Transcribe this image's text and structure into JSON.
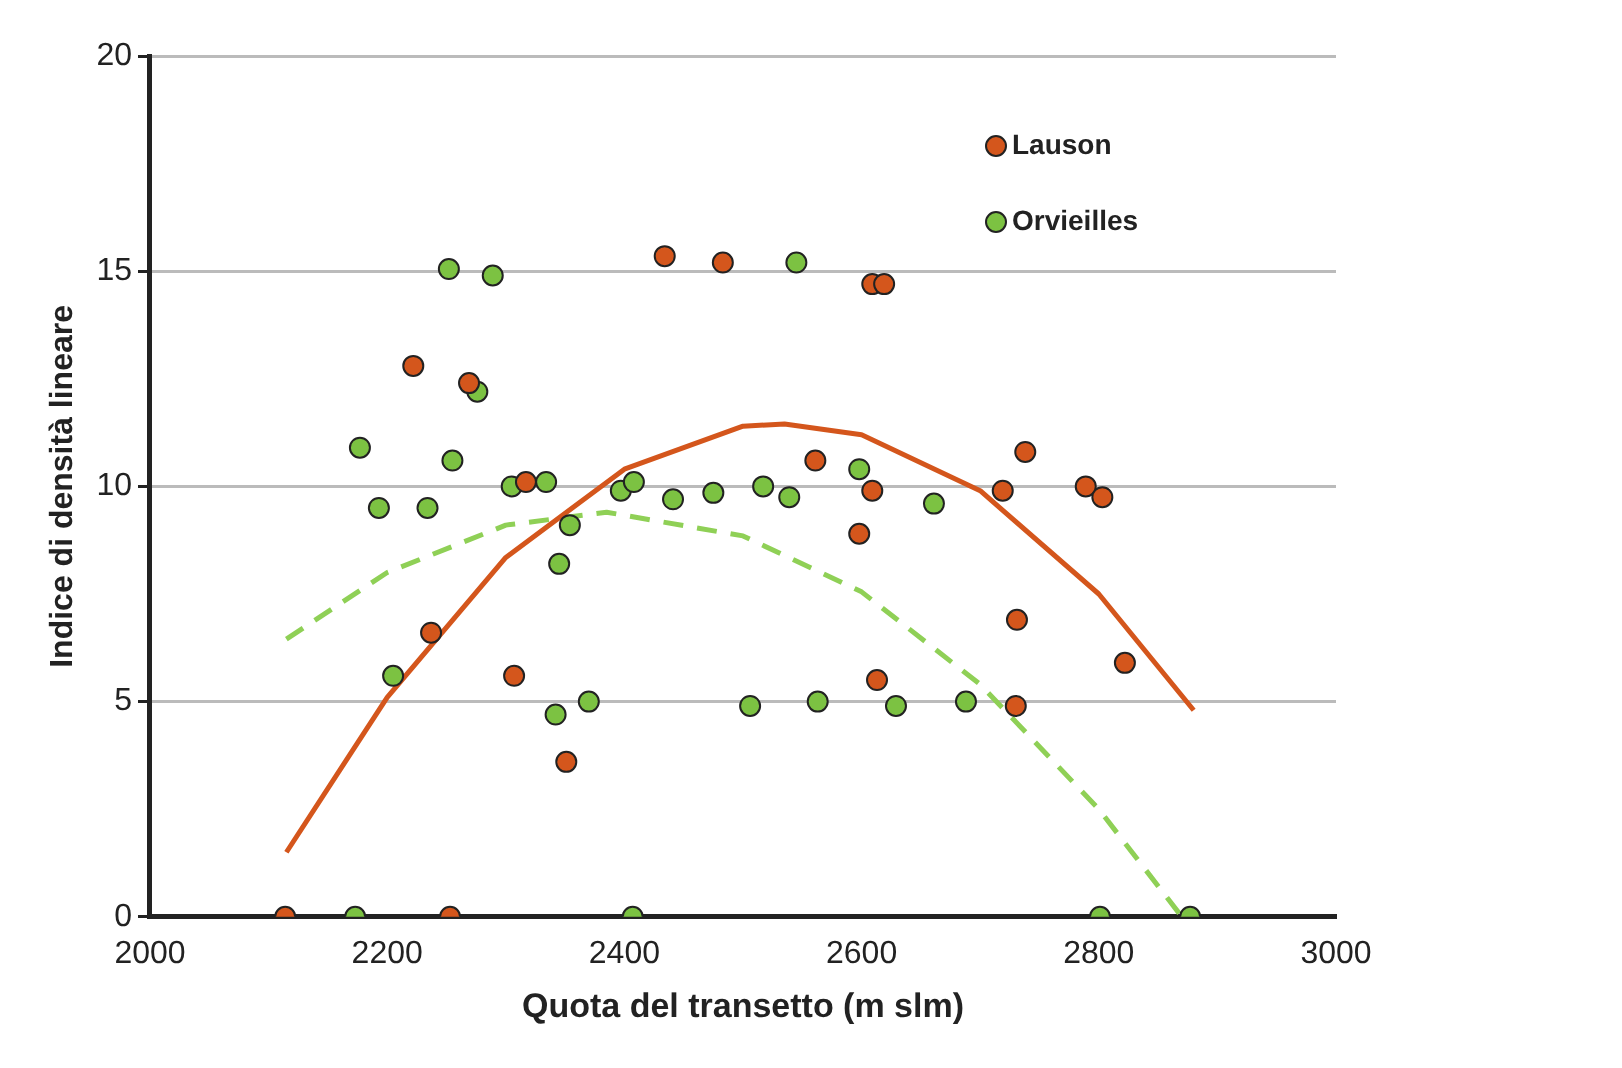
{
  "chart_data": {
    "type": "scatter",
    "xlabel": "Quota del transetto (m slm)",
    "ylabel": "Indice di densità lineare",
    "xlim": [
      2000,
      3000
    ],
    "xticks": [
      2000,
      2200,
      2400,
      2600,
      2800,
      3000
    ],
    "ylim": [
      0,
      20
    ],
    "yticks": [
      0,
      5,
      10,
      15,
      20
    ],
    "grid": "y",
    "legend": "top right",
    "marker": "circle",
    "series": [
      {
        "name": "Lauson",
        "color": "#d4561c",
        "x": [
          2114,
          2253,
          2222,
          2269,
          2317,
          2237,
          2307,
          2434,
          2483,
          2609,
          2619,
          2561,
          2609,
          2598,
          2351,
          2613,
          2738,
          2719,
          2789,
          2803,
          2731,
          2822,
          2730
        ],
        "values": [
          0,
          0,
          12.8,
          12.4,
          10.1,
          6.6,
          5.6,
          15.35,
          15.2,
          14.7,
          14.7,
          10.6,
          9.9,
          8.9,
          3.6,
          5.5,
          10.8,
          9.9,
          10.0,
          9.75,
          6.9,
          5.9,
          4.9
        ]
      },
      {
        "name": "Orvieilles",
        "color": "#7cc242",
        "x": [
          2173,
          2252,
          2289,
          2276,
          2177,
          2255,
          2193,
          2234,
          2305,
          2334,
          2205,
          2545,
          2397,
          2408,
          2441,
          2475,
          2517,
          2539,
          2598,
          2661,
          2354,
          2345,
          2342,
          2370,
          2506,
          2563,
          2629,
          2407,
          2688,
          2801,
          2877
        ],
        "values": [
          0,
          15.05,
          14.9,
          12.2,
          10.9,
          10.6,
          9.5,
          9.5,
          10.0,
          10.1,
          5.6,
          15.2,
          9.9,
          10.1,
          9.7,
          9.85,
          10.0,
          9.75,
          10.4,
          9.6,
          9.1,
          8.2,
          4.7,
          5.0,
          4.9,
          5.0,
          4.9,
          0,
          5.0,
          0,
          0
        ]
      },
      {
        "type": "line",
        "color": "#d4561c",
        "line_style": "solid",
        "marker": "none",
        "x": [
          2115,
          2200,
          2300,
          2400,
          2500,
          2535,
          2600,
          2700,
          2800,
          2880
        ],
        "values": [
          1.5,
          5.1,
          8.35,
          10.4,
          11.4,
          11.45,
          11.2,
          9.9,
          7.5,
          4.8
        ]
      },
      {
        "type": "line",
        "color": "#8fd056",
        "line_style": "dashed",
        "marker": "none",
        "x": [
          2115,
          2200,
          2300,
          2385,
          2500,
          2600,
          2700,
          2800,
          2870
        ],
        "values": [
          6.45,
          8.0,
          9.1,
          9.4,
          8.85,
          7.55,
          5.4,
          2.5,
          0
        ]
      }
    ]
  }
}
